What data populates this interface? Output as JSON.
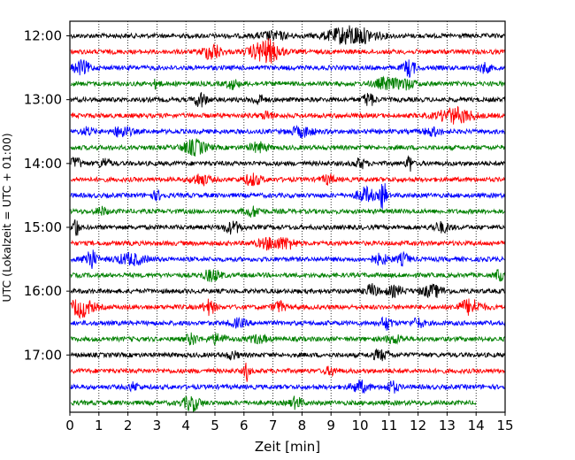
{
  "chart_data": {
    "type": "line",
    "title": "",
    "xlabel": "Zeit  [min]",
    "ylabel": "UTC (Lokalzeit = UTC + 01:00)",
    "xlim": [
      0,
      15
    ],
    "x_ticks": [
      "0",
      "1",
      "2",
      "3",
      "4",
      "5",
      "6",
      "7",
      "8",
      "9",
      "10",
      "11",
      "12",
      "13",
      "14",
      "15"
    ],
    "y_ticks": [
      "12:00",
      "13:00",
      "14:00",
      "15:00",
      "16:00",
      "17:00"
    ],
    "grid": "vertical dotted",
    "trace_interval_min": 15,
    "line_colors": [
      "#000000",
      "#ff0000",
      "#0000ff",
      "#008000"
    ],
    "series": [
      {
        "start": "12:00",
        "events": [
          [
            9.7,
            0.8,
            10
          ],
          [
            7.0,
            0.5,
            4
          ]
        ],
        "end_min": 15
      },
      {
        "start": "12:15",
        "events": [
          [
            4.9,
            0.3,
            9
          ],
          [
            6.9,
            0.4,
            10
          ],
          [
            6.5,
            0.4,
            6
          ]
        ],
        "end_min": 15
      },
      {
        "start": "12:30",
        "events": [
          [
            0.4,
            0.3,
            7
          ],
          [
            11.7,
            0.2,
            9
          ],
          [
            14.3,
            0.2,
            5
          ]
        ],
        "end_min": 15
      },
      {
        "start": "12:45",
        "events": [
          [
            3.0,
            0.1,
            6
          ],
          [
            5.6,
            0.2,
            5
          ],
          [
            10.9,
            0.4,
            6
          ],
          [
            11.6,
            0.3,
            5
          ]
        ],
        "end_min": 15
      },
      {
        "start": "13:00",
        "events": [
          [
            4.5,
            0.2,
            8
          ],
          [
            10.3,
            0.2,
            7
          ],
          [
            6.5,
            0.2,
            5
          ]
        ],
        "end_min": 15
      },
      {
        "start": "13:15",
        "events": [
          [
            13.3,
            0.6,
            8
          ],
          [
            6.8,
            0.2,
            4
          ]
        ],
        "end_min": 15
      },
      {
        "start": "13:30",
        "events": [
          [
            1.8,
            0.3,
            6
          ],
          [
            8.0,
            0.4,
            5
          ],
          [
            12.5,
            0.3,
            4
          ],
          [
            0.6,
            0.2,
            4
          ]
        ],
        "end_min": 15
      },
      {
        "start": "13:45",
        "events": [
          [
            4.3,
            0.4,
            8
          ],
          [
            6.5,
            0.3,
            5
          ]
        ],
        "end_min": 15
      },
      {
        "start": "14:00",
        "events": [
          [
            0.2,
            0.2,
            6
          ],
          [
            1.2,
            0.2,
            5
          ],
          [
            11.7,
            0.1,
            10
          ],
          [
            10.0,
            0.2,
            5
          ]
        ],
        "end_min": 15
      },
      {
        "start": "14:15",
        "events": [
          [
            4.5,
            0.3,
            6
          ],
          [
            6.3,
            0.3,
            6
          ],
          [
            8.9,
            0.2,
            5
          ]
        ],
        "end_min": 15
      },
      {
        "start": "14:30",
        "events": [
          [
            10.8,
            0.1,
            18
          ],
          [
            10.2,
            0.3,
            8
          ],
          [
            3.0,
            0.2,
            4
          ]
        ],
        "end_min": 15
      },
      {
        "start": "14:45",
        "events": [
          [
            6.3,
            0.3,
            5
          ],
          [
            1.1,
            0.2,
            4
          ]
        ],
        "end_min": 15
      },
      {
        "start": "15:00",
        "events": [
          [
            0.2,
            0.1,
            12
          ],
          [
            5.6,
            0.3,
            6
          ],
          [
            12.8,
            0.3,
            5
          ]
        ],
        "end_min": 15
      },
      {
        "start": "15:15",
        "events": [
          [
            6.9,
            0.4,
            6
          ],
          [
            7.5,
            0.3,
            5
          ]
        ],
        "end_min": 15
      },
      {
        "start": "15:30",
        "events": [
          [
            0.7,
            0.2,
            12
          ],
          [
            2.1,
            0.5,
            6
          ],
          [
            10.7,
            0.3,
            5
          ],
          [
            11.5,
            0.2,
            6
          ]
        ],
        "end_min": 15
      },
      {
        "start": "15:45",
        "events": [
          [
            4.9,
            0.3,
            6
          ],
          [
            14.8,
            0.1,
            8
          ]
        ],
        "end_min": 15
      },
      {
        "start": "16:00",
        "events": [
          [
            10.4,
            0.2,
            7
          ],
          [
            12.5,
            0.4,
            6
          ],
          [
            11.2,
            0.3,
            5
          ]
        ],
        "end_min": 15
      },
      {
        "start": "16:15",
        "events": [
          [
            0.4,
            0.4,
            10
          ],
          [
            4.8,
            0.2,
            8
          ],
          [
            7.2,
            0.2,
            6
          ],
          [
            13.8,
            0.4,
            8
          ]
        ],
        "end_min": 15
      },
      {
        "start": "16:30",
        "events": [
          [
            10.9,
            0.2,
            7
          ],
          [
            12.0,
            0.2,
            5
          ],
          [
            5.8,
            0.3,
            4
          ]
        ],
        "end_min": 15
      },
      {
        "start": "16:45",
        "events": [
          [
            4.2,
            0.2,
            6
          ],
          [
            5.1,
            0.3,
            5
          ],
          [
            6.5,
            0.3,
            4
          ],
          [
            11.2,
            0.3,
            4
          ]
        ],
        "end_min": 15
      },
      {
        "start": "17:00",
        "events": [
          [
            10.7,
            0.3,
            5
          ],
          [
            5.6,
            0.2,
            4
          ]
        ],
        "end_min": 15
      },
      {
        "start": "17:15",
        "events": [
          [
            6.1,
            0.1,
            10
          ],
          [
            9.0,
            0.2,
            4
          ]
        ],
        "end_min": 15
      },
      {
        "start": "17:30",
        "events": [
          [
            10.0,
            0.3,
            6
          ],
          [
            11.1,
            0.2,
            6
          ],
          [
            2.2,
            0.2,
            4
          ]
        ],
        "end_min": 15
      },
      {
        "start": "17:45",
        "events": [
          [
            4.2,
            0.3,
            8
          ],
          [
            7.8,
            0.2,
            6
          ]
        ],
        "end_min": 14.0
      }
    ]
  }
}
